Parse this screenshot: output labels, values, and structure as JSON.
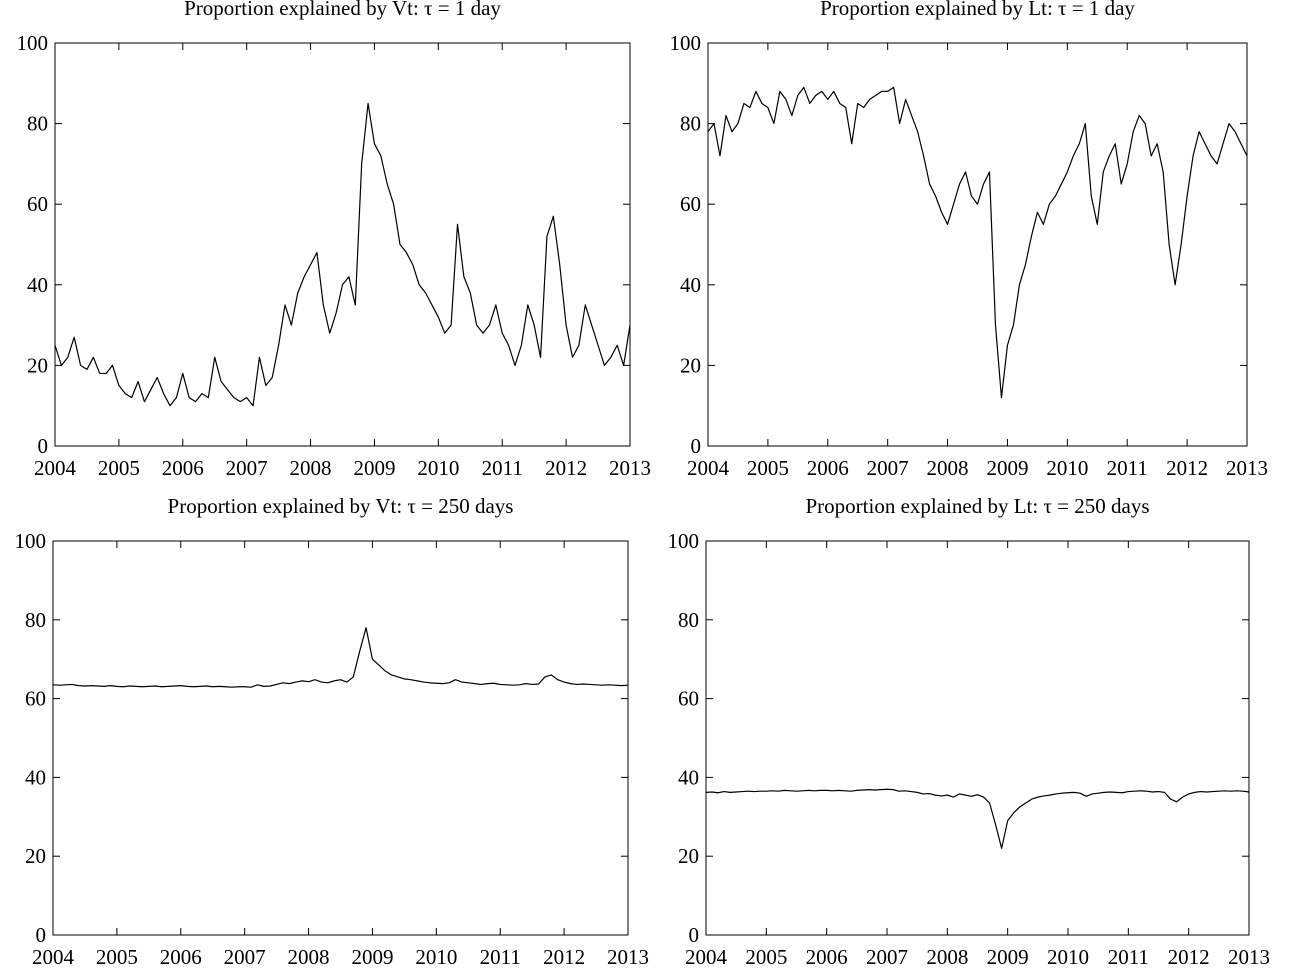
{
  "chart_data": [
    {
      "type": "line",
      "title": "Proportion explained by Vt: τ = 1 day",
      "x": [
        2004,
        2004.1,
        2004.2,
        2004.3,
        2004.4,
        2004.5,
        2004.6,
        2004.7,
        2004.8,
        2004.9,
        2005,
        2005.1,
        2005.2,
        2005.3,
        2005.4,
        2005.5,
        2005.6,
        2005.7,
        2005.8,
        2005.9,
        2006,
        2006.1,
        2006.2,
        2006.3,
        2006.4,
        2006.5,
        2006.6,
        2006.7,
        2006.8,
        2006.9,
        2007,
        2007.1,
        2007.2,
        2007.3,
        2007.4,
        2007.5,
        2007.6,
        2007.7,
        2007.8,
        2007.9,
        2008,
        2008.1,
        2008.2,
        2008.3,
        2008.4,
        2008.5,
        2008.6,
        2008.7,
        2008.8,
        2008.9,
        2009,
        2009.1,
        2009.2,
        2009.3,
        2009.4,
        2009.5,
        2009.6,
        2009.7,
        2009.8,
        2009.9,
        2010,
        2010.1,
        2010.2,
        2010.3,
        2010.4,
        2010.5,
        2010.6,
        2010.7,
        2010.8,
        2010.9,
        2011,
        2011.1,
        2011.2,
        2011.3,
        2011.4,
        2011.5,
        2011.6,
        2011.7,
        2011.8,
        2011.9,
        2012,
        2012.1,
        2012.2,
        2012.3,
        2012.4,
        2012.5,
        2012.6,
        2012.7,
        2012.8,
        2012.9,
        2013
      ],
      "series": [
        {
          "color": "#000000",
          "values": [
            25,
            20,
            22,
            27,
            20,
            19,
            22,
            18,
            18,
            20,
            15,
            13,
            12,
            16,
            11,
            14,
            17,
            13,
            10,
            12,
            18,
            12,
            11,
            13,
            12,
            22,
            16,
            14,
            12,
            11,
            12,
            10,
            22,
            15,
            17,
            25,
            35,
            30,
            38,
            42,
            45,
            48,
            35,
            28,
            33,
            40,
            42,
            35,
            70,
            85,
            75,
            72,
            65,
            60,
            50,
            48,
            45,
            40,
            38,
            35,
            32,
            28,
            30,
            55,
            42,
            38,
            30,
            28,
            30,
            35,
            28,
            25,
            20,
            25,
            35,
            30,
            22,
            52,
            57,
            45,
            30,
            22,
            25,
            35,
            30,
            25,
            20,
            22,
            25,
            20,
            30
          ]
        }
      ],
      "xlim": [
        2004,
        2013
      ],
      "ylim": [
        0,
        100
      ],
      "xticks": [
        2004,
        2005,
        2006,
        2007,
        2008,
        2009,
        2010,
        2011,
        2012,
        2013
      ],
      "yticks": [
        0,
        20,
        40,
        60,
        80,
        100
      ]
    },
    {
      "type": "line",
      "title": "Proportion explained by Lt: τ = 1 day",
      "x": [
        2004,
        2004.1,
        2004.2,
        2004.3,
        2004.4,
        2004.5,
        2004.6,
        2004.7,
        2004.8,
        2004.9,
        2005,
        2005.1,
        2005.2,
        2005.3,
        2005.4,
        2005.5,
        2005.6,
        2005.7,
        2005.8,
        2005.9,
        2006,
        2006.1,
        2006.2,
        2006.3,
        2006.4,
        2006.5,
        2006.6,
        2006.7,
        2006.8,
        2006.9,
        2007,
        2007.1,
        2007.2,
        2007.3,
        2007.4,
        2007.5,
        2007.6,
        2007.7,
        2007.8,
        2007.9,
        2008,
        2008.1,
        2008.2,
        2008.3,
        2008.4,
        2008.5,
        2008.6,
        2008.7,
        2008.8,
        2008.9,
        2009,
        2009.1,
        2009.2,
        2009.3,
        2009.4,
        2009.5,
        2009.6,
        2009.7,
        2009.8,
        2009.9,
        2010,
        2010.1,
        2010.2,
        2010.3,
        2010.4,
        2010.5,
        2010.6,
        2010.7,
        2010.8,
        2010.9,
        2011,
        2011.1,
        2011.2,
        2011.3,
        2011.4,
        2011.5,
        2011.6,
        2011.7,
        2011.8,
        2011.9,
        2012,
        2012.1,
        2012.2,
        2012.3,
        2012.4,
        2012.5,
        2012.6,
        2012.7,
        2012.8,
        2012.9,
        2013
      ],
      "series": [
        {
          "color": "#000000",
          "values": [
            78,
            80,
            72,
            82,
            78,
            80,
            85,
            84,
            88,
            85,
            84,
            80,
            88,
            86,
            82,
            87,
            89,
            85,
            87,
            88,
            86,
            88,
            85,
            84,
            75,
            85,
            84,
            86,
            87,
            88,
            88,
            89,
            80,
            86,
            82,
            78,
            72,
            65,
            62,
            58,
            55,
            60,
            65,
            68,
            62,
            60,
            65,
            68,
            30,
            12,
            25,
            30,
            40,
            45,
            52,
            58,
            55,
            60,
            62,
            65,
            68,
            72,
            75,
            80,
            62,
            55,
            68,
            72,
            75,
            65,
            70,
            78,
            82,
            80,
            72,
            75,
            68,
            50,
            40,
            50,
            62,
            72,
            78,
            75,
            72,
            70,
            75,
            80,
            78,
            75,
            72
          ]
        }
      ],
      "xlim": [
        2004,
        2013
      ],
      "ylim": [
        0,
        100
      ],
      "xticks": [
        2004,
        2005,
        2006,
        2007,
        2008,
        2009,
        2010,
        2011,
        2012,
        2013
      ],
      "yticks": [
        0,
        20,
        40,
        60,
        80,
        100
      ]
    },
    {
      "type": "line",
      "title": "Proportion explained by Vt: τ = 250 days",
      "x": [
        2004,
        2004.1,
        2004.2,
        2004.3,
        2004.4,
        2004.5,
        2004.6,
        2004.7,
        2004.8,
        2004.9,
        2005,
        2005.1,
        2005.2,
        2005.3,
        2005.4,
        2005.5,
        2005.6,
        2005.7,
        2005.8,
        2005.9,
        2006,
        2006.1,
        2006.2,
        2006.3,
        2006.4,
        2006.5,
        2006.6,
        2006.7,
        2006.8,
        2006.9,
        2007,
        2007.1,
        2007.2,
        2007.3,
        2007.4,
        2007.5,
        2007.6,
        2007.7,
        2007.8,
        2007.9,
        2008,
        2008.1,
        2008.2,
        2008.3,
        2008.4,
        2008.5,
        2008.6,
        2008.7,
        2008.8,
        2008.9,
        2009,
        2009.1,
        2009.2,
        2009.3,
        2009.4,
        2009.5,
        2009.6,
        2009.7,
        2009.8,
        2009.9,
        2010,
        2010.1,
        2010.2,
        2010.3,
        2010.4,
        2010.5,
        2010.6,
        2010.7,
        2010.8,
        2010.9,
        2011,
        2011.1,
        2011.2,
        2011.3,
        2011.4,
        2011.5,
        2011.6,
        2011.7,
        2011.8,
        2011.9,
        2012,
        2012.1,
        2012.2,
        2012.3,
        2012.4,
        2012.5,
        2012.6,
        2012.7,
        2012.8,
        2012.9,
        2013
      ],
      "series": [
        {
          "color": "#000000",
          "values": [
            63.5,
            63.4,
            63.5,
            63.6,
            63.3,
            63.2,
            63.3,
            63.2,
            63.1,
            63.3,
            63.1,
            63.0,
            63.2,
            63.1,
            63.0,
            63.1,
            63.2,
            63.0,
            63.1,
            63.2,
            63.3,
            63.1,
            63.0,
            63.1,
            63.2,
            63.0,
            63.1,
            63.0,
            62.9,
            63.0,
            63.0,
            62.9,
            63.5,
            63.1,
            63.2,
            63.6,
            64.0,
            63.8,
            64.2,
            64.5,
            64.3,
            64.8,
            64.2,
            64.0,
            64.5,
            64.8,
            64.2,
            65.5,
            72,
            78,
            70,
            68.5,
            67,
            66,
            65.5,
            65,
            64.8,
            64.5,
            64.2,
            64.0,
            63.9,
            63.8,
            64.0,
            64.8,
            64.2,
            64.0,
            63.8,
            63.6,
            63.8,
            63.9,
            63.6,
            63.5,
            63.4,
            63.5,
            63.8,
            63.6,
            63.7,
            65.5,
            66,
            64.8,
            64.2,
            63.8,
            63.6,
            63.7,
            63.6,
            63.5,
            63.4,
            63.5,
            63.4,
            63.3,
            63.4
          ]
        }
      ],
      "xlim": [
        2004,
        2013
      ],
      "ylim": [
        0,
        100
      ],
      "xticks": [
        2004,
        2005,
        2006,
        2007,
        2008,
        2009,
        2010,
        2011,
        2012,
        2013
      ],
      "yticks": [
        0,
        20,
        40,
        60,
        80,
        100
      ]
    },
    {
      "type": "line",
      "title": "Proportion explained by Lt: τ = 250 days",
      "x": [
        2004,
        2004.1,
        2004.2,
        2004.3,
        2004.4,
        2004.5,
        2004.6,
        2004.7,
        2004.8,
        2004.9,
        2005,
        2005.1,
        2005.2,
        2005.3,
        2005.4,
        2005.5,
        2005.6,
        2005.7,
        2005.8,
        2005.9,
        2006,
        2006.1,
        2006.2,
        2006.3,
        2006.4,
        2006.5,
        2006.6,
        2006.7,
        2006.8,
        2006.9,
        2007,
        2007.1,
        2007.2,
        2007.3,
        2007.4,
        2007.5,
        2007.6,
        2007.7,
        2007.8,
        2007.9,
        2008,
        2008.1,
        2008.2,
        2008.3,
        2008.4,
        2008.5,
        2008.6,
        2008.7,
        2008.8,
        2008.9,
        2009,
        2009.1,
        2009.2,
        2009.3,
        2009.4,
        2009.5,
        2009.6,
        2009.7,
        2009.8,
        2009.9,
        2010,
        2010.1,
        2010.2,
        2010.3,
        2010.4,
        2010.5,
        2010.6,
        2010.7,
        2010.8,
        2010.9,
        2011,
        2011.1,
        2011.2,
        2011.3,
        2011.4,
        2011.5,
        2011.6,
        2011.7,
        2011.8,
        2011.9,
        2012,
        2012.1,
        2012.2,
        2012.3,
        2012.4,
        2012.5,
        2012.6,
        2012.7,
        2012.8,
        2012.9,
        2013
      ],
      "series": [
        {
          "color": "#000000",
          "values": [
            36.2,
            36.3,
            36.1,
            36.4,
            36.2,
            36.3,
            36.4,
            36.5,
            36.4,
            36.5,
            36.5,
            36.6,
            36.5,
            36.7,
            36.6,
            36.5,
            36.6,
            36.7,
            36.6,
            36.7,
            36.7,
            36.6,
            36.7,
            36.6,
            36.5,
            36.7,
            36.8,
            36.9,
            36.8,
            36.9,
            37.0,
            36.9,
            36.5,
            36.6,
            36.4,
            36.2,
            35.8,
            35.9,
            35.5,
            35.3,
            35.5,
            35.0,
            35.8,
            35.5,
            35.2,
            35.6,
            35.0,
            33.5,
            28,
            22,
            29,
            31,
            32.5,
            33.5,
            34.5,
            35,
            35.3,
            35.5,
            35.8,
            36.0,
            36.1,
            36.2,
            36.0,
            35.2,
            35.8,
            36.0,
            36.2,
            36.3,
            36.2,
            36.1,
            36.4,
            36.5,
            36.6,
            36.5,
            36.3,
            36.4,
            36.2,
            34.5,
            33.8,
            35.0,
            35.8,
            36.2,
            36.4,
            36.3,
            36.4,
            36.5,
            36.6,
            36.5,
            36.6,
            36.5,
            36.3
          ]
        }
      ],
      "xlim": [
        2004,
        2013
      ],
      "ylim": [
        0,
        100
      ],
      "xticks": [
        2004,
        2005,
        2006,
        2007,
        2008,
        2009,
        2010,
        2011,
        2012,
        2013
      ],
      "yticks": [
        0,
        20,
        40,
        60,
        80,
        100
      ]
    }
  ]
}
